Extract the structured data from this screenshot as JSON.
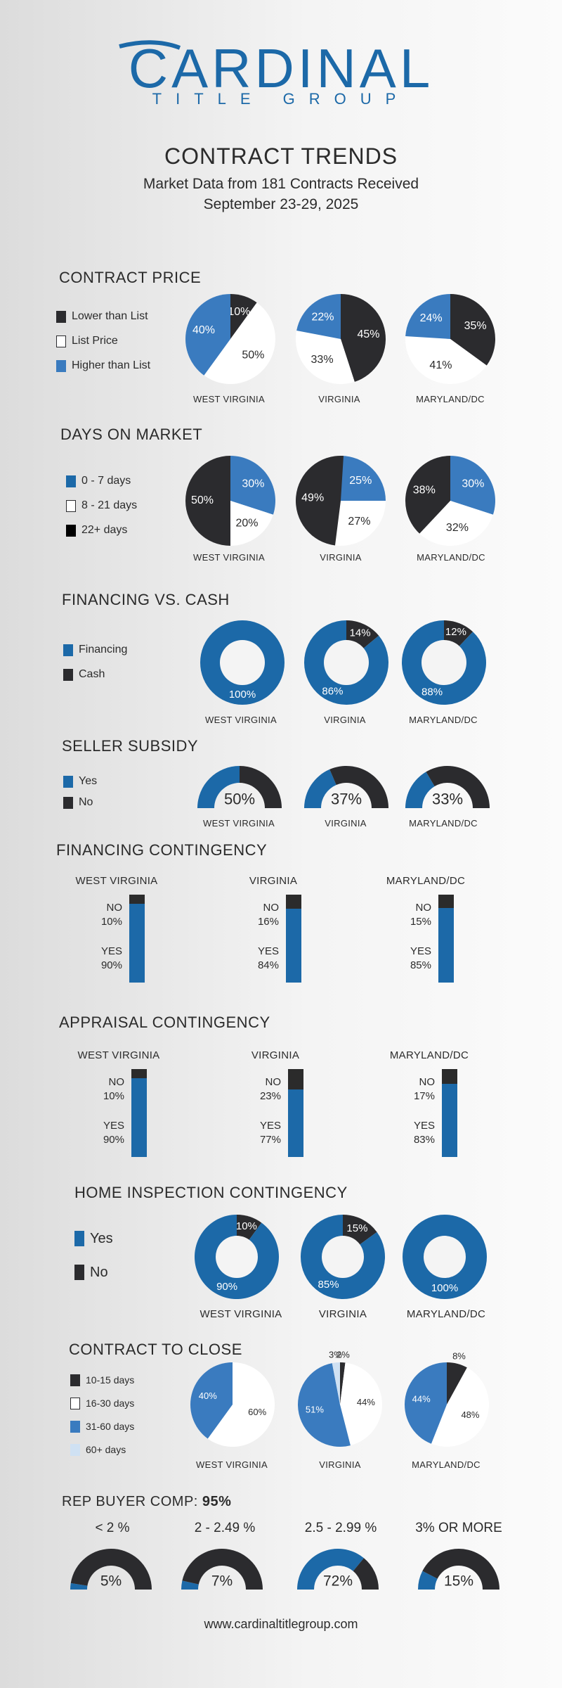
{
  "header": {
    "brand_main": "CARDINAL",
    "brand_sub": "TITLE GROUP",
    "title": "CONTRACT TRENDS",
    "subtitle1": "Market Data from 181 Contracts Received",
    "subtitle2": "September 23-29, 2025"
  },
  "colors": {
    "dark": "#2b2b2e",
    "blue": "#3a7bbf",
    "navy": "#1c69a8",
    "white": "#ffffff",
    "light_blue": "#cfe1f3"
  },
  "regions": [
    "WEST VIRGINIA",
    "VIRGINIA",
    "MARYLAND/DC"
  ],
  "regions_mixed": [
    "WEST VIRGINIA",
    "VIRGINIA",
    "MARYLAND/DC"
  ],
  "contract_price": {
    "title": "CONTRACT PRICE",
    "legend": [
      "Lower than List",
      "List Price",
      "Higher than List"
    ]
  },
  "days_on_market": {
    "title": "DAYS ON MARKET",
    "legend": [
      "0 - 7 days",
      "8 - 21 days",
      "22+ days"
    ]
  },
  "financing_cash": {
    "title": "FINANCING VS. CASH",
    "legend": [
      "Financing",
      "Cash"
    ]
  },
  "seller_subsidy": {
    "title": "SELLER SUBSIDY",
    "legend": [
      "Yes",
      "No"
    ]
  },
  "financing_contingency": {
    "title": "FINANCING CONTINGENCY",
    "no_label": "NO",
    "yes_label": "YES"
  },
  "appraisal_contingency": {
    "title": "APPRAISAL CONTINGENCY",
    "no_label": "NO",
    "yes_label": "YES"
  },
  "home_inspection": {
    "title": "HOME INSPECTION CONTINGENCY",
    "legend": [
      "Yes",
      "No"
    ]
  },
  "contract_to_close": {
    "title": "CONTRACT TO CLOSE",
    "legend": [
      "10-15 days",
      "16-30 days",
      "31-60 days",
      "60+ days"
    ]
  },
  "rep_buyer_comp": {
    "title_prefix": "REP BUYER COMP:",
    "title_value": "95%",
    "categories": [
      "< 2 %",
      "2 - 2.49 %",
      "2.5 - 2.99 %",
      "3% OR MORE"
    ]
  },
  "footer": {
    "url": "www.cardinaltitlegroup.com"
  },
  "chart_data": [
    {
      "id": "contract_price",
      "type": "pie",
      "title": "CONTRACT PRICE",
      "categories": [
        "WEST VIRGINIA",
        "VIRGINIA",
        "MARYLAND/DC"
      ],
      "series": [
        {
          "name": "Lower than List",
          "values": [
            10,
            45,
            35
          ]
        },
        {
          "name": "List Price",
          "values": [
            50,
            33,
            41
          ]
        },
        {
          "name": "Higher than List",
          "values": [
            40,
            22,
            24
          ]
        }
      ],
      "labels": [
        [
          "10%",
          "50%",
          "40%"
        ],
        [
          "45%",
          "33%",
          "22%"
        ],
        [
          "35%",
          "41%",
          "24%"
        ]
      ]
    },
    {
      "id": "days_on_market",
      "type": "pie",
      "title": "DAYS ON MARKET",
      "categories": [
        "WEST VIRGINIA",
        "VIRGINIA",
        "MARYLAND/DC"
      ],
      "series": [
        {
          "name": "0 - 7 days",
          "values": [
            30,
            25,
            30
          ]
        },
        {
          "name": "8 - 21 days",
          "values": [
            20,
            27,
            32
          ]
        },
        {
          "name": "22+ days",
          "values": [
            50,
            49,
            38
          ]
        }
      ],
      "labels": [
        [
          "30%",
          "20%",
          "50%"
        ],
        [
          "25%",
          "27%",
          "49%"
        ],
        [
          "30%",
          "32%",
          "38%"
        ]
      ]
    },
    {
      "id": "financing_cash",
      "type": "pie",
      "title": "FINANCING VS. CASH",
      "categories": [
        "WEST VIRGINIA",
        "VIRGINIA",
        "MARYLAND/DC"
      ],
      "series": [
        {
          "name": "Financing",
          "values": [
            100,
            86,
            88
          ]
        },
        {
          "name": "Cash",
          "values": [
            0,
            14,
            12
          ]
        }
      ],
      "labels": [
        [
          "100%",
          ""
        ],
        [
          "86%",
          "14%"
        ],
        [
          "88%",
          "12%"
        ]
      ]
    },
    {
      "id": "seller_subsidy",
      "type": "pie",
      "title": "SELLER SUBSIDY",
      "categories": [
        "WEST VIRGINIA",
        "VIRGINIA",
        "MARYLAND/DC"
      ],
      "series": [
        {
          "name": "Yes",
          "values": [
            50,
            37,
            33
          ]
        },
        {
          "name": "No",
          "values": [
            50,
            63,
            67
          ]
        }
      ],
      "center_labels": [
        "50%",
        "37%",
        "33%"
      ]
    },
    {
      "id": "financing_contingency",
      "type": "bar",
      "title": "FINANCING CONTINGENCY",
      "categories": [
        "WEST VIRGINIA",
        "VIRGINIA",
        "MARYLAND/DC"
      ],
      "series": [
        {
          "name": "NO",
          "values": [
            10,
            16,
            15
          ]
        },
        {
          "name": "YES",
          "values": [
            90,
            84,
            85
          ]
        }
      ],
      "labels_no": [
        "10%",
        "16%",
        "15%"
      ],
      "labels_yes": [
        "90%",
        "84%",
        "85%"
      ]
    },
    {
      "id": "appraisal_contingency",
      "type": "bar",
      "title": "APPRAISAL CONTINGENCY",
      "categories": [
        "WEST VIRGINIA",
        "VIRGINIA",
        "MARYLAND/DC"
      ],
      "series": [
        {
          "name": "NO",
          "values": [
            10,
            23,
            17
          ]
        },
        {
          "name": "YES",
          "values": [
            90,
            77,
            83
          ]
        }
      ],
      "labels_no": [
        "10%",
        "23%",
        "17%"
      ],
      "labels_yes": [
        "90%",
        "77%",
        "83%"
      ]
    },
    {
      "id": "home_inspection",
      "type": "pie",
      "title": "HOME INSPECTION CONTINGENCY",
      "categories": [
        "WEST VIRGINIA",
        "VIRGINIA",
        "MARYLAND/DC"
      ],
      "series": [
        {
          "name": "Yes",
          "values": [
            90,
            85,
            100
          ]
        },
        {
          "name": "No",
          "values": [
            10,
            15,
            0
          ]
        }
      ],
      "labels": [
        [
          "90%",
          "10%"
        ],
        [
          "85%",
          "15%"
        ],
        [
          "100%",
          ""
        ]
      ]
    },
    {
      "id": "contract_to_close",
      "type": "pie",
      "title": "CONTRACT TO CLOSE",
      "categories": [
        "WEST VIRGINIA",
        "VIRGINIA",
        "MARYLAND/DC"
      ],
      "series": [
        {
          "name": "10-15 days",
          "values": [
            0,
            2,
            8
          ]
        },
        {
          "name": "16-30 days",
          "values": [
            60,
            44,
            48
          ]
        },
        {
          "name": "31-60 days",
          "values": [
            40,
            51,
            44
          ]
        },
        {
          "name": "60+ days",
          "values": [
            0,
            3,
            0
          ]
        }
      ],
      "labels": [
        [
          "",
          "60%",
          "40%",
          ""
        ],
        [
          "2%",
          "44%",
          "51%",
          "3%"
        ],
        [
          "8%",
          "48%",
          "44%",
          ""
        ]
      ]
    },
    {
      "id": "rep_buyer_comp",
      "type": "pie",
      "title": "REP BUYER COMP: 95%",
      "categories": [
        "< 2 %",
        "2 - 2.49 %",
        "2.5 - 2.99 %",
        "3% OR MORE"
      ],
      "values": [
        5,
        7,
        72,
        15
      ],
      "center_labels": [
        "5%",
        "7%",
        "72%",
        "15%"
      ]
    }
  ]
}
